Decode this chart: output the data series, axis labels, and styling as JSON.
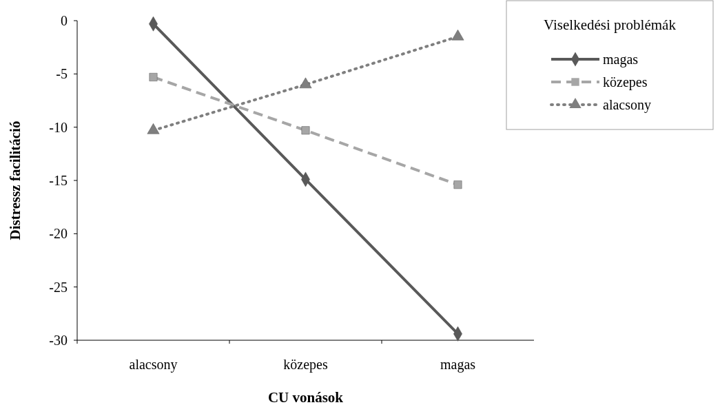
{
  "chart_data": {
    "type": "line",
    "xlabel": "CU vonások",
    "ylabel": "Distressz facilitáció",
    "legend_title": "Viselkedési problémák",
    "legend": "top right",
    "grid": false,
    "categories": [
      "alacsony",
      "közepes",
      "magas"
    ],
    "ylim": [
      -30,
      0
    ],
    "yticks": [
      -30,
      -25,
      -20,
      -15,
      -10,
      -5,
      0
    ],
    "series": [
      {
        "name": "magas",
        "color": "#595959",
        "marker": "diamond",
        "line_style": "solid",
        "values": [
          -0.3,
          -14.9,
          -29.4
        ]
      },
      {
        "name": "közepes",
        "color": "#a6a6a6",
        "marker": "square",
        "line_style": "dashed",
        "values": [
          -5.3,
          -10.3,
          -15.4
        ]
      },
      {
        "name": "alacsony",
        "color": "#7f7f7f",
        "marker": "triangle",
        "line_style": "dotted",
        "values": [
          -10.3,
          -6.0,
          -1.5
        ]
      }
    ]
  }
}
